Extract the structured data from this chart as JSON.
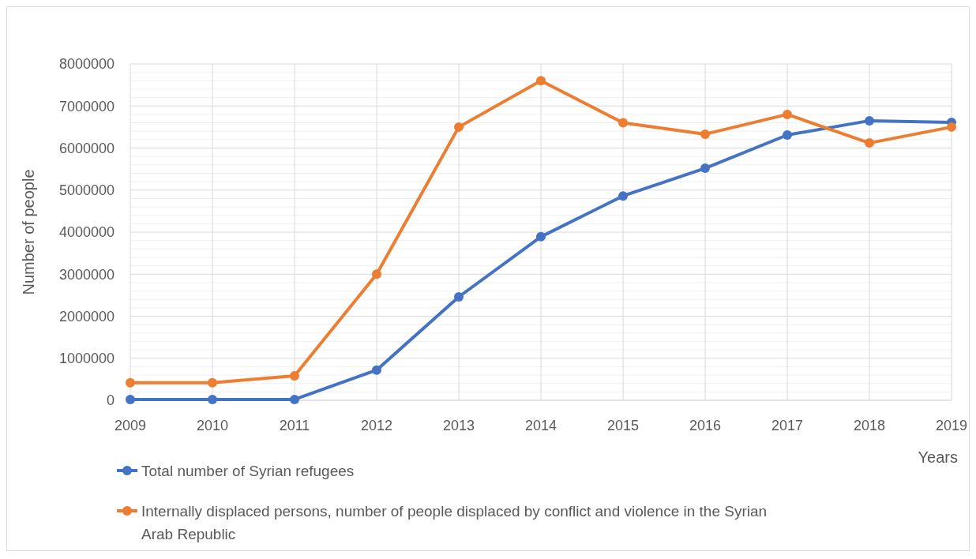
{
  "chart_data": {
    "type": "line",
    "xlabel": "Years",
    "ylabel": "Number of people",
    "x": [
      2009,
      2010,
      2011,
      2012,
      2013,
      2014,
      2015,
      2016,
      2017,
      2018,
      2019
    ],
    "xlim": [
      2009,
      2019
    ],
    "xticks": [
      2009,
      2010,
      2011,
      2012,
      2013,
      2014,
      2015,
      2016,
      2017,
      2018,
      2019
    ],
    "ylim": [
      0,
      8000000
    ],
    "yticks": [
      0,
      {
        "value": 200000,
        "label": null
      },
      {
        "value": 400000,
        "label": null
      },
      {
        "value": 600000,
        "label": null
      },
      {
        "value": 800000,
        "label": null
      },
      1000000,
      {
        "value": 1200000,
        "label": null
      },
      {
        "value": 1400000,
        "label": null
      },
      {
        "value": 1600000,
        "label": null
      },
      {
        "value": 1800000,
        "label": null
      },
      2000000,
      {
        "value": 2200000,
        "label": null
      },
      {
        "value": 2400000,
        "label": null
      },
      {
        "value": 2600000,
        "label": null
      },
      {
        "value": 2800000,
        "label": null
      },
      3000000,
      {
        "value": 3200000,
        "label": null
      },
      {
        "value": 3400000,
        "label": null
      },
      {
        "value": 3600000,
        "label": null
      },
      {
        "value": 3800000,
        "label": null
      },
      4000000,
      {
        "value": 4200000,
        "label": null
      },
      {
        "value": 4400000,
        "label": null
      },
      {
        "value": 4600000,
        "label": null
      },
      {
        "value": 4800000,
        "label": null
      },
      5000000,
      {
        "value": 5200000,
        "label": null
      },
      {
        "value": 5400000,
        "label": null
      },
      {
        "value": 5600000,
        "label": null
      },
      {
        "value": 5800000,
        "label": null
      },
      6000000,
      {
        "value": 6200000,
        "label": null
      },
      {
        "value": 6400000,
        "label": null
      },
      {
        "value": 6600000,
        "label": null
      },
      {
        "value": 6800000,
        "label": null
      },
      7000000,
      {
        "value": 7200000,
        "label": null
      },
      {
        "value": 7400000,
        "label": null
      },
      {
        "value": 7600000,
        "label": null
      },
      {
        "value": 7800000,
        "label": null
      },
      8000000
    ],
    "grid": true,
    "legend": "bottom",
    "marker": "circle",
    "series": [
      {
        "name": "Total number of Syrian refugees",
        "color": "#4472c4",
        "values": [
          20000,
          20000,
          20000,
          720000,
          2460000,
          3890000,
          4860000,
          5520000,
          6310000,
          6650000,
          6610000
        ]
      },
      {
        "name": "Internally displaced persons, number of people displaced by conflict and violence in the Syrian Arab Republic",
        "color": "#ed7d31",
        "values": [
          420000,
          420000,
          580000,
          3000000,
          6500000,
          7600000,
          6600000,
          6330000,
          6800000,
          6120000,
          6500000
        ]
      }
    ]
  }
}
